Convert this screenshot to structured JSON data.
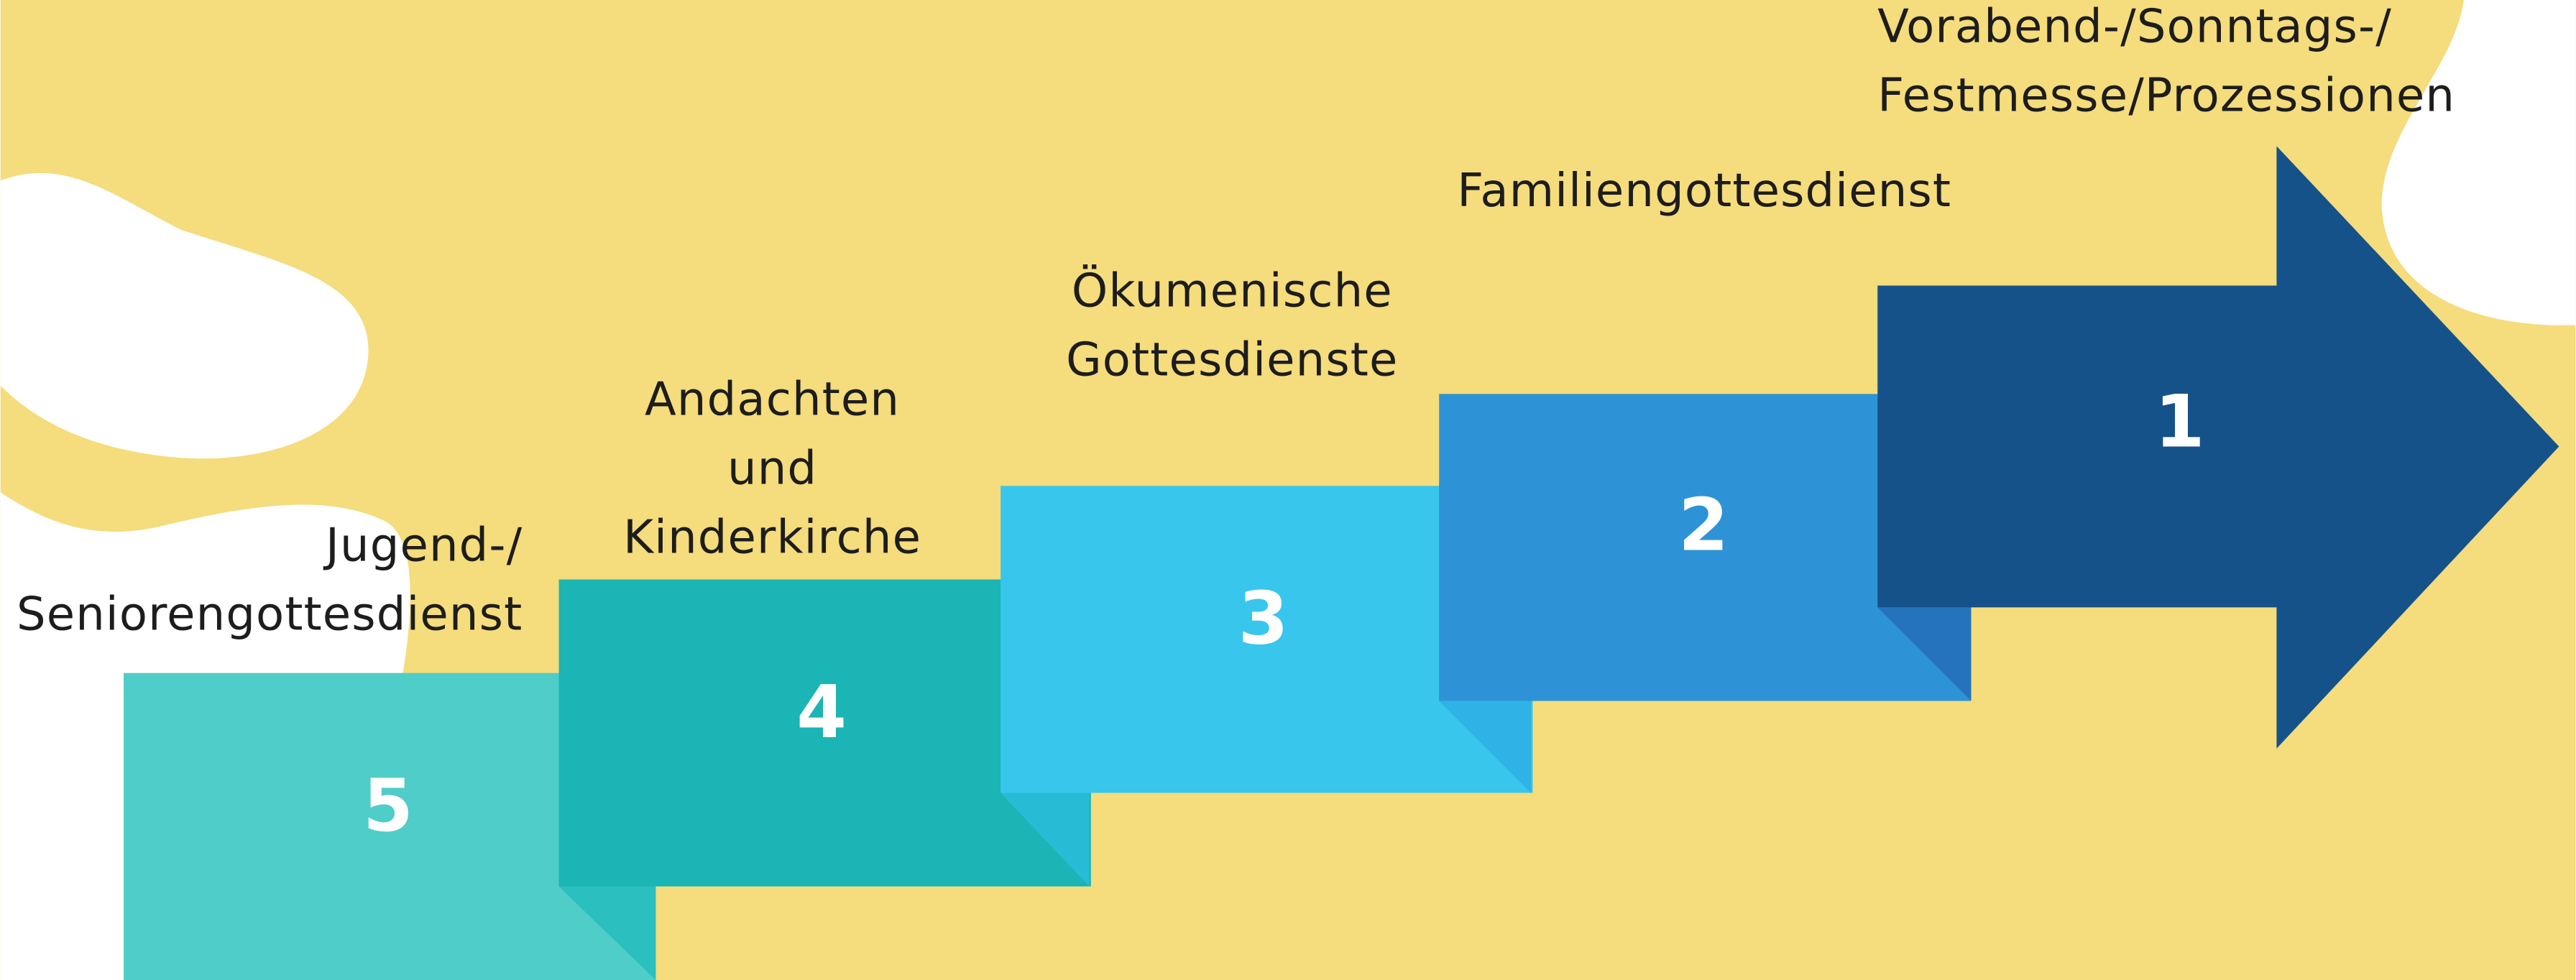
{
  "steps": [
    {
      "number": "1",
      "label": [
        "Vorabend-/Sonntags-/",
        "Festmesse/Prozessionen"
      ]
    },
    {
      "number": "2",
      "label": [
        "Familiengottesdienst"
      ]
    },
    {
      "number": "3",
      "label": [
        "Ökumenische",
        "Gottesdienste"
      ]
    },
    {
      "number": "4",
      "label": [
        "Andachten",
        "und",
        "Kinderkirche"
      ]
    },
    {
      "number": "5",
      "label": [
        "Jugend-/",
        "Seniorengottesdienst"
      ]
    }
  ]
}
